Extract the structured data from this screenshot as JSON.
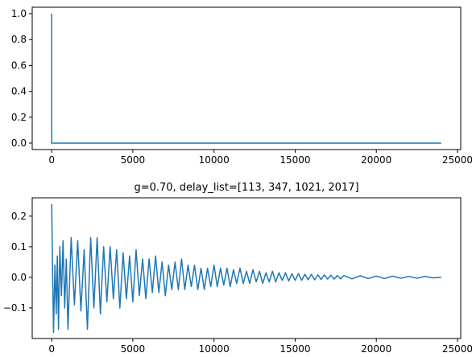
{
  "chart_data": [
    {
      "type": "line",
      "x": [
        0,
        1,
        23999
      ],
      "series": [
        {
          "color": "#1f77b4",
          "values": [
            1.0,
            0.0,
            0.0
          ]
        }
      ],
      "xlim": [
        -1200,
        25200
      ],
      "ylim": [
        -0.05,
        1.05
      ],
      "xticks": [
        0,
        5000,
        10000,
        15000,
        20000,
        25000
      ],
      "yticks": [
        {
          "value": 0.0,
          "label": "0.0"
        },
        {
          "value": 0.2,
          "label": "0.2"
        },
        {
          "value": 0.4,
          "label": "0.4"
        },
        {
          "value": 0.6,
          "label": "0.6"
        },
        {
          "value": 0.8,
          "label": "0.8"
        },
        {
          "value": 1.0,
          "label": "1.0"
        }
      ],
      "grid": false
    },
    {
      "type": "line",
      "title": "g=0.70, delay_list=[113, 347, 1021, 2017]",
      "x": [
        0,
        60,
        113,
        200,
        280,
        347,
        420,
        500,
        600,
        700,
        800,
        900,
        1000,
        1200,
        1400,
        1600,
        1800,
        2000,
        2200,
        2400,
        2600,
        2800,
        3000,
        3200,
        3400,
        3600,
        3800,
        4000,
        4200,
        4400,
        4600,
        4800,
        5000,
        5200,
        5400,
        5600,
        5800,
        6000,
        6200,
        6400,
        6600,
        6800,
        7000,
        7200,
        7400,
        7600,
        7800,
        8000,
        8200,
        8400,
        8600,
        8800,
        9000,
        9200,
        9400,
        9600,
        9800,
        10000,
        10200,
        10400,
        10600,
        10800,
        11000,
        11200,
        11400,
        11600,
        11800,
        12000,
        12200,
        12400,
        12600,
        12800,
        13000,
        13200,
        13400,
        13600,
        13800,
        14000,
        14200,
        14400,
        14600,
        14800,
        15000,
        15200,
        15400,
        15600,
        15800,
        16000,
        16200,
        16400,
        16600,
        16800,
        17000,
        17200,
        17400,
        17600,
        17800,
        18000,
        18500,
        19000,
        19500,
        20000,
        20500,
        21000,
        21500,
        22000,
        22500,
        23000,
        23500,
        23999
      ],
      "series": [
        {
          "color": "#1f77b4",
          "values": [
            0.24,
            0,
            -0.18,
            0.04,
            -0.12,
            0.07,
            -0.17,
            0.1,
            -0.06,
            0.12,
            -0.1,
            0.06,
            -0.17,
            0.13,
            -0.09,
            0.12,
            -0.11,
            0.09,
            -0.17,
            0.13,
            -0.1,
            0.13,
            -0.12,
            0.1,
            -0.08,
            0.1,
            -0.07,
            0.09,
            -0.1,
            0.08,
            -0.07,
            0.07,
            -0.08,
            0.09,
            -0.06,
            0.06,
            -0.07,
            0.06,
            -0.05,
            0.07,
            -0.05,
            0.05,
            -0.06,
            0.04,
            -0.04,
            0.05,
            -0.04,
            0.06,
            -0.04,
            0.04,
            -0.03,
            0.04,
            -0.04,
            0.03,
            -0.04,
            0.03,
            -0.03,
            0.04,
            -0.03,
            0.03,
            -0.025,
            0.03,
            -0.03,
            0.025,
            -0.02,
            0.03,
            -0.02,
            0.02,
            -0.02,
            0.025,
            -0.015,
            0.02,
            -0.02,
            0.015,
            -0.015,
            0.02,
            -0.015,
            0.015,
            -0.01,
            0.015,
            -0.012,
            0.012,
            -0.01,
            0.012,
            -0.01,
            0.01,
            -0.008,
            0.01,
            -0.008,
            0.008,
            -0.007,
            0.008,
            -0.006,
            0.007,
            -0.006,
            0.006,
            -0.005,
            0.006,
            -0.005,
            0.005,
            -0.004,
            0.004,
            -0.004,
            0.004,
            -0.003,
            0.003,
            -0.003,
            0.003,
            -0.002,
            0
          ]
        }
      ],
      "xlim": [
        -1200,
        25200
      ],
      "ylim": [
        -0.2,
        0.26
      ],
      "xticks": [
        0,
        5000,
        10000,
        15000,
        20000,
        25000
      ],
      "yticks": [
        {
          "value": -0.1,
          "label": "−0.1"
        },
        {
          "value": 0.0,
          "label": "0.0"
        },
        {
          "value": 0.1,
          "label": "0.1"
        },
        {
          "value": 0.2,
          "label": "0.2"
        }
      ],
      "grid": false
    }
  ]
}
